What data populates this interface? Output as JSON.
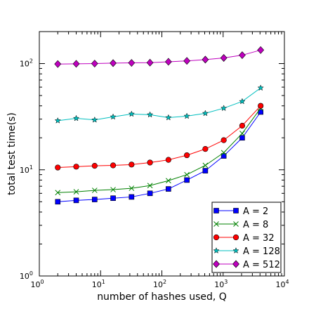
{
  "chart_data": {
    "type": "line",
    "title": "",
    "xlabel": "number of hashes used, Q",
    "ylabel": "total test time(s)",
    "xscale": "log",
    "yscale": "log",
    "xlim": [
      1,
      10000
    ],
    "ylim": [
      1,
      200
    ],
    "grid": false,
    "legend_position": "lower-right",
    "x_ticks": [
      {
        "value": 1,
        "base": "10",
        "exp": "0"
      },
      {
        "value": 10,
        "base": "10",
        "exp": "1"
      },
      {
        "value": 100,
        "base": "10",
        "exp": "2"
      },
      {
        "value": 1000,
        "base": "10",
        "exp": "3"
      },
      {
        "value": 10000,
        "base": "10",
        "exp": "4"
      }
    ],
    "y_ticks": [
      {
        "value": 1,
        "base": "10",
        "exp": "0"
      },
      {
        "value": 10,
        "base": "10",
        "exp": "1"
      },
      {
        "value": 100,
        "base": "10",
        "exp": "2"
      }
    ],
    "x": [
      2,
      4,
      8,
      16,
      32,
      64,
      128,
      256,
      512,
      1024,
      2048,
      4096
    ],
    "series": [
      {
        "name": "A = 2",
        "color": "#0000ff",
        "marker": "square",
        "values": [
          5.0,
          5.15,
          5.25,
          5.4,
          5.55,
          6.0,
          6.6,
          8.0,
          9.8,
          13.5,
          20.0,
          35.0
        ]
      },
      {
        "name": "A = 8",
        "color": "#008000",
        "marker": "x",
        "values": [
          6.1,
          6.2,
          6.4,
          6.5,
          6.7,
          7.1,
          7.9,
          9.0,
          11.0,
          14.5,
          22.0,
          38.0
        ]
      },
      {
        "name": "A = 32",
        "color": "#ff0000",
        "marker": "circle",
        "values": [
          10.5,
          10.7,
          10.9,
          11.0,
          11.2,
          11.7,
          12.4,
          13.7,
          15.7,
          19.0,
          26.0,
          40.0
        ]
      },
      {
        "name": "A = 128",
        "color": "#00bfbf",
        "marker": "star",
        "values": [
          29.0,
          30.5,
          29.5,
          31.5,
          33.5,
          33.0,
          31.0,
          32.0,
          34.0,
          38.0,
          44.0,
          59.0
        ]
      },
      {
        "name": "A = 512",
        "color": "#bf00bf",
        "marker": "diamond",
        "values": [
          99.0,
          99.5,
          100.0,
          101.0,
          101.5,
          102.0,
          104.0,
          106.0,
          109.0,
          113.0,
          120.0,
          134.0
        ]
      }
    ]
  }
}
